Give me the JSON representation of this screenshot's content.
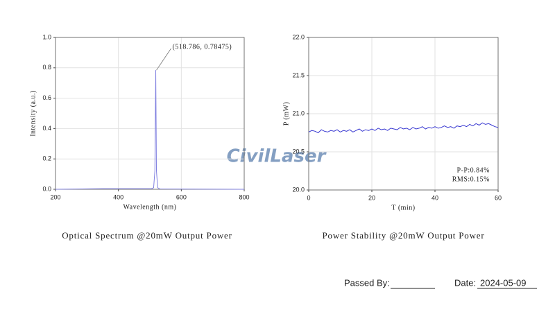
{
  "chart_data": [
    {
      "type": "line",
      "title": "Optical Spectrum @20mW Output Power",
      "x_label": "Wavelength (nm)",
      "y_label": "Intensity (a.u.)",
      "x": [
        200,
        350,
        505,
        512,
        516,
        518.786,
        521,
        525,
        532,
        800
      ],
      "series": [
        {
          "name": "Spectrum",
          "color": "#8080e0",
          "values": [
            0,
            0.004,
            0.004,
            0.01,
            0.12,
            0.78475,
            0.12,
            0.01,
            0.002,
            0
          ]
        }
      ],
      "xlim": [
        200,
        800
      ],
      "xticks": [
        200,
        400,
        600,
        800
      ],
      "ylim": [
        0,
        1
      ],
      "yticks": [
        {
          "value": 0,
          "label": "0.0"
        },
        0.2,
        0.4,
        0.6,
        0.8,
        {
          "value": 1,
          "label": "1.0"
        }
      ],
      "grid": true,
      "annotations": [
        "(518.786, 0.78475)"
      ]
    },
    {
      "type": "line",
      "title": "Power Stability @20mW Output Power",
      "x_label": "T (min)",
      "y_label": "P (mW)",
      "x": [
        0,
        1,
        2,
        3,
        4,
        5,
        6,
        7,
        8,
        9,
        10,
        11,
        12,
        13,
        14,
        15,
        16,
        17,
        18,
        19,
        20,
        21,
        22,
        23,
        24,
        25,
        26,
        27,
        28,
        29,
        30,
        31,
        32,
        33,
        34,
        35,
        36,
        37,
        38,
        39,
        40,
        41,
        42,
        43,
        44,
        45,
        46,
        47,
        48,
        49,
        50,
        51,
        52,
        53,
        54,
        55,
        56,
        57,
        58,
        59,
        60
      ],
      "series": [
        {
          "name": "Power",
          "color": "#3535d0",
          "values": [
            20.76,
            20.78,
            20.77,
            20.75,
            20.79,
            20.77,
            20.76,
            20.78,
            20.77,
            20.79,
            20.76,
            20.78,
            20.77,
            20.79,
            20.76,
            20.78,
            20.8,
            20.77,
            20.79,
            20.78,
            20.8,
            20.78,
            20.81,
            20.79,
            20.8,
            20.78,
            20.81,
            20.8,
            20.79,
            20.82,
            20.8,
            20.81,
            20.79,
            20.82,
            20.8,
            20.81,
            20.83,
            20.8,
            20.82,
            20.81,
            20.83,
            20.81,
            20.82,
            20.84,
            20.82,
            20.83,
            20.81,
            20.84,
            20.83,
            20.85,
            20.83,
            20.86,
            20.84,
            20.87,
            20.85,
            20.88,
            20.86,
            20.87,
            20.85,
            20.83,
            20.82
          ]
        }
      ],
      "xlim": [
        0,
        60
      ],
      "xticks": [
        0,
        20,
        40,
        60
      ],
      "ylim": [
        20,
        22
      ],
      "yticks": [
        {
          "value": 20,
          "label": "20.0"
        },
        20.5,
        {
          "value": 21,
          "label": "21.0"
        },
        21.5,
        {
          "value": 22,
          "label": "22.0"
        }
      ],
      "grid": true,
      "annotations": [
        "P-P:0.84%",
        "RMS:0.15%"
      ]
    }
  ],
  "watermark": "CivilLaser",
  "footer": {
    "passed_by_label": "Passed By:",
    "date_label": "Date:",
    "date": "2024-05-09"
  }
}
